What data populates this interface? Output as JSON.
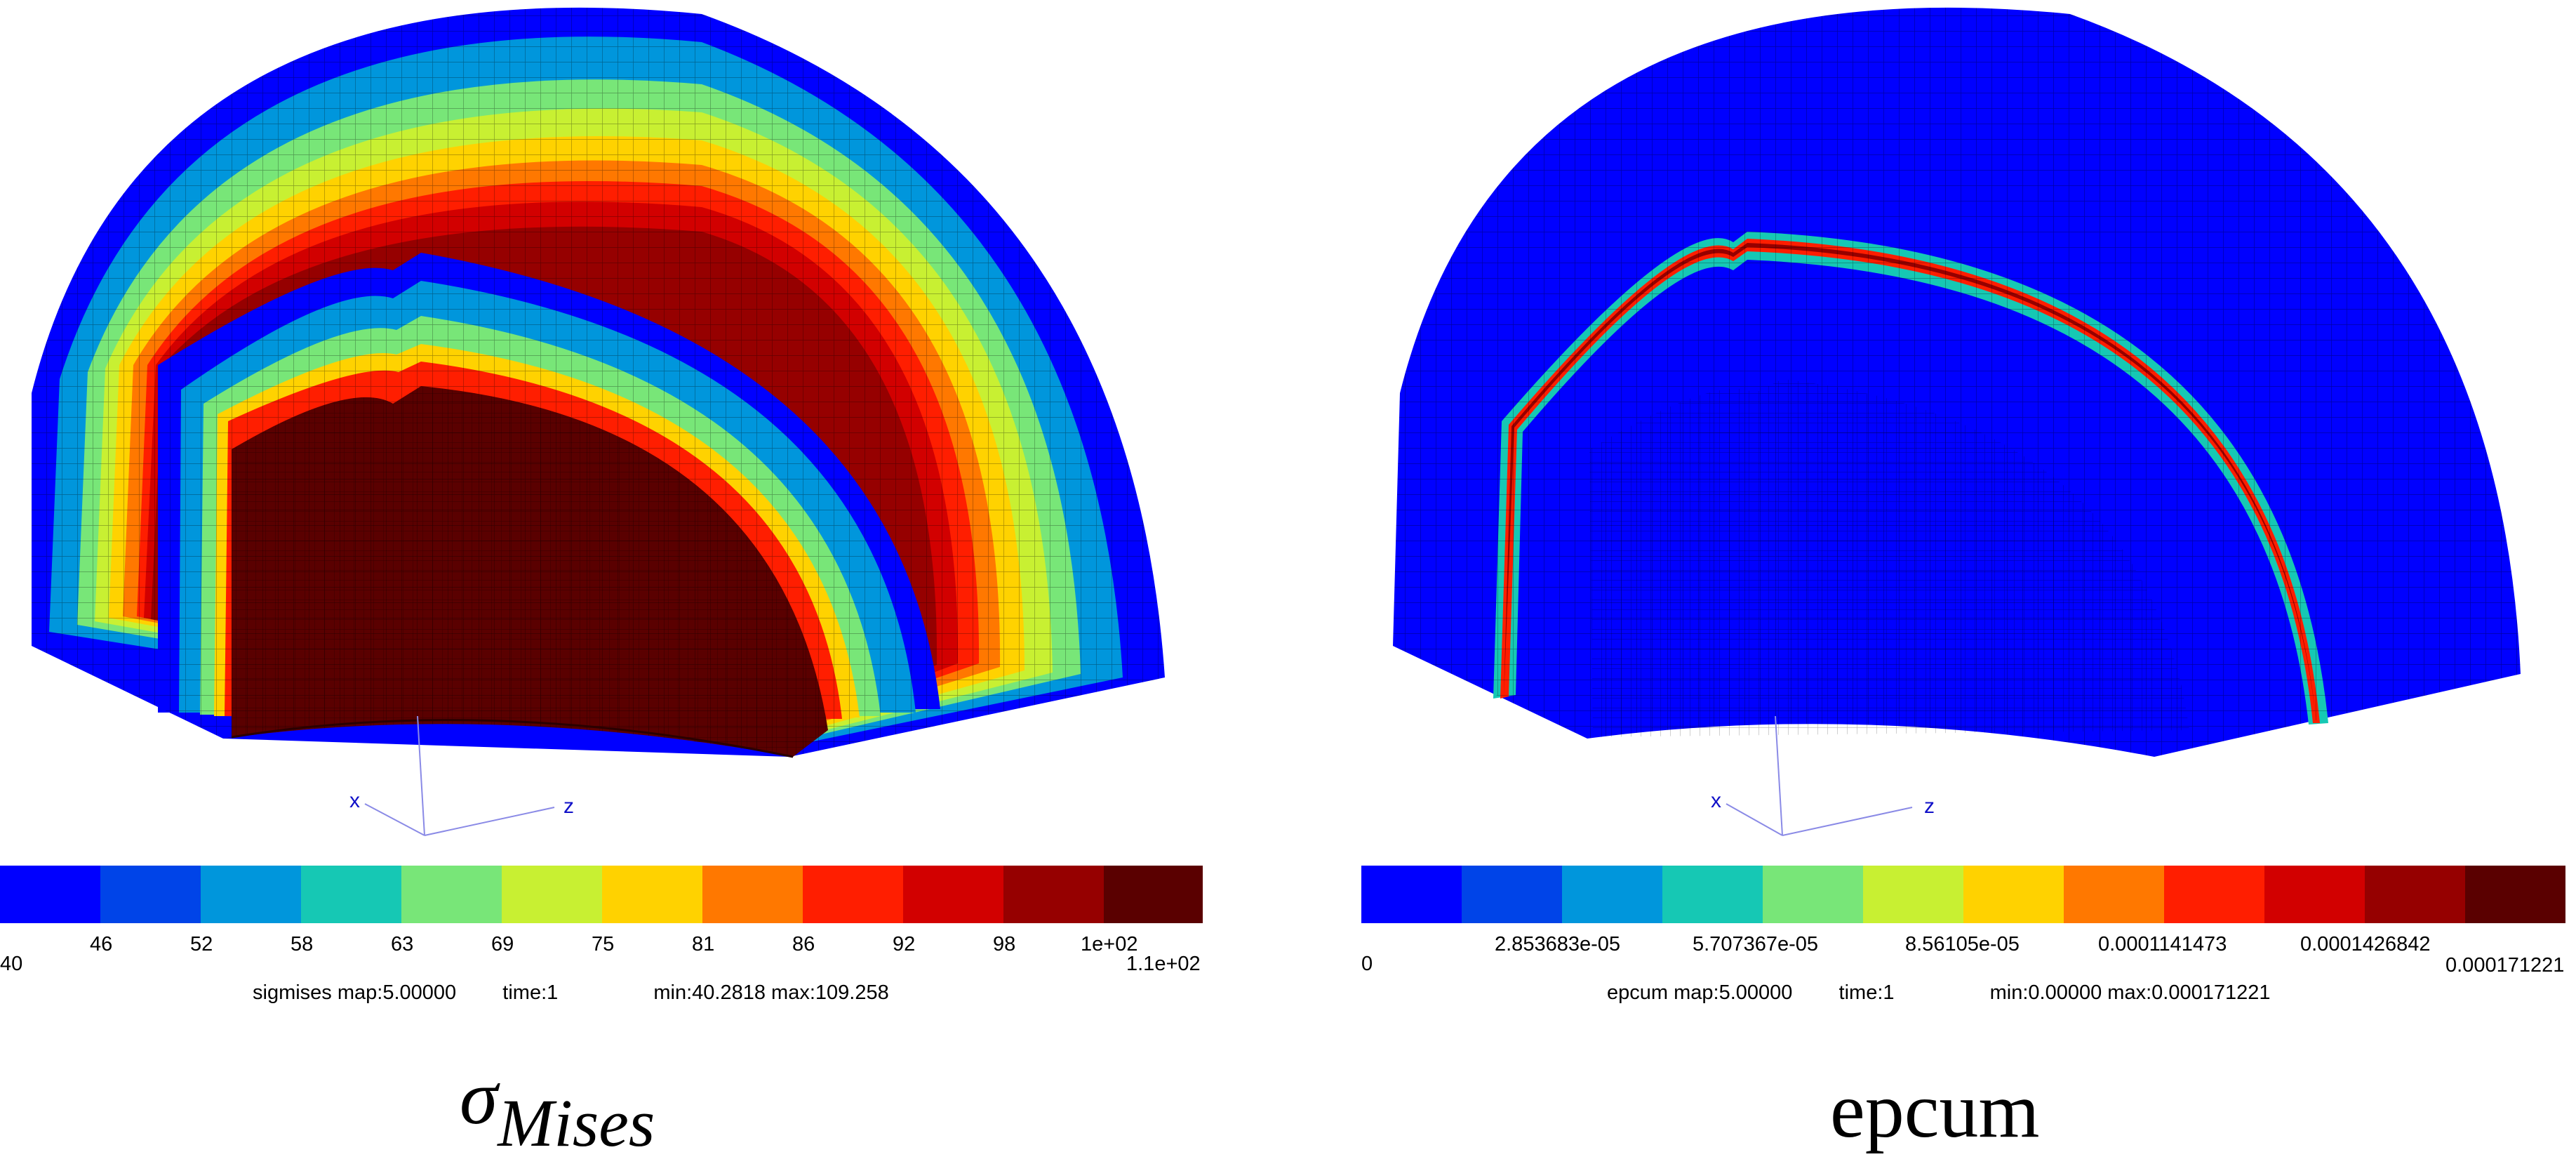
{
  "palette": [
    "#0000ff",
    "#0044e8",
    "#0096dc",
    "#16c8b4",
    "#78e678",
    "#c8f032",
    "#ffd200",
    "#ff7800",
    "#ff1e00",
    "#d20000",
    "#960000",
    "#5a0000"
  ],
  "panels": [
    {
      "caption_main": "σ",
      "caption_sub": "Mises",
      "colorbar_ticks": [
        "40",
        "46",
        "52",
        "58",
        "63",
        "69",
        "75",
        "81",
        "86",
        "92",
        "98",
        "1e+02",
        "1.1e+02"
      ],
      "info_name": "sigmises map:5.00000",
      "info_time": "time:1",
      "info_minmax": "min:40.2818 max:109.258",
      "axes": {
        "x": "x",
        "z": "z"
      }
    },
    {
      "caption_main": "epcum",
      "colorbar_ticks": [
        "0",
        "2.853683e-05",
        "5.707367e-05",
        "8.56105e-05",
        "0.0001141473",
        "0.0001426842",
        "0.000171221"
      ],
      "info_name": "epcum map:5.00000",
      "info_time": "time:1",
      "info_minmax": "min:0.00000 max:0.000171221",
      "axes": {
        "x": "x",
        "z": "z"
      }
    }
  ]
}
